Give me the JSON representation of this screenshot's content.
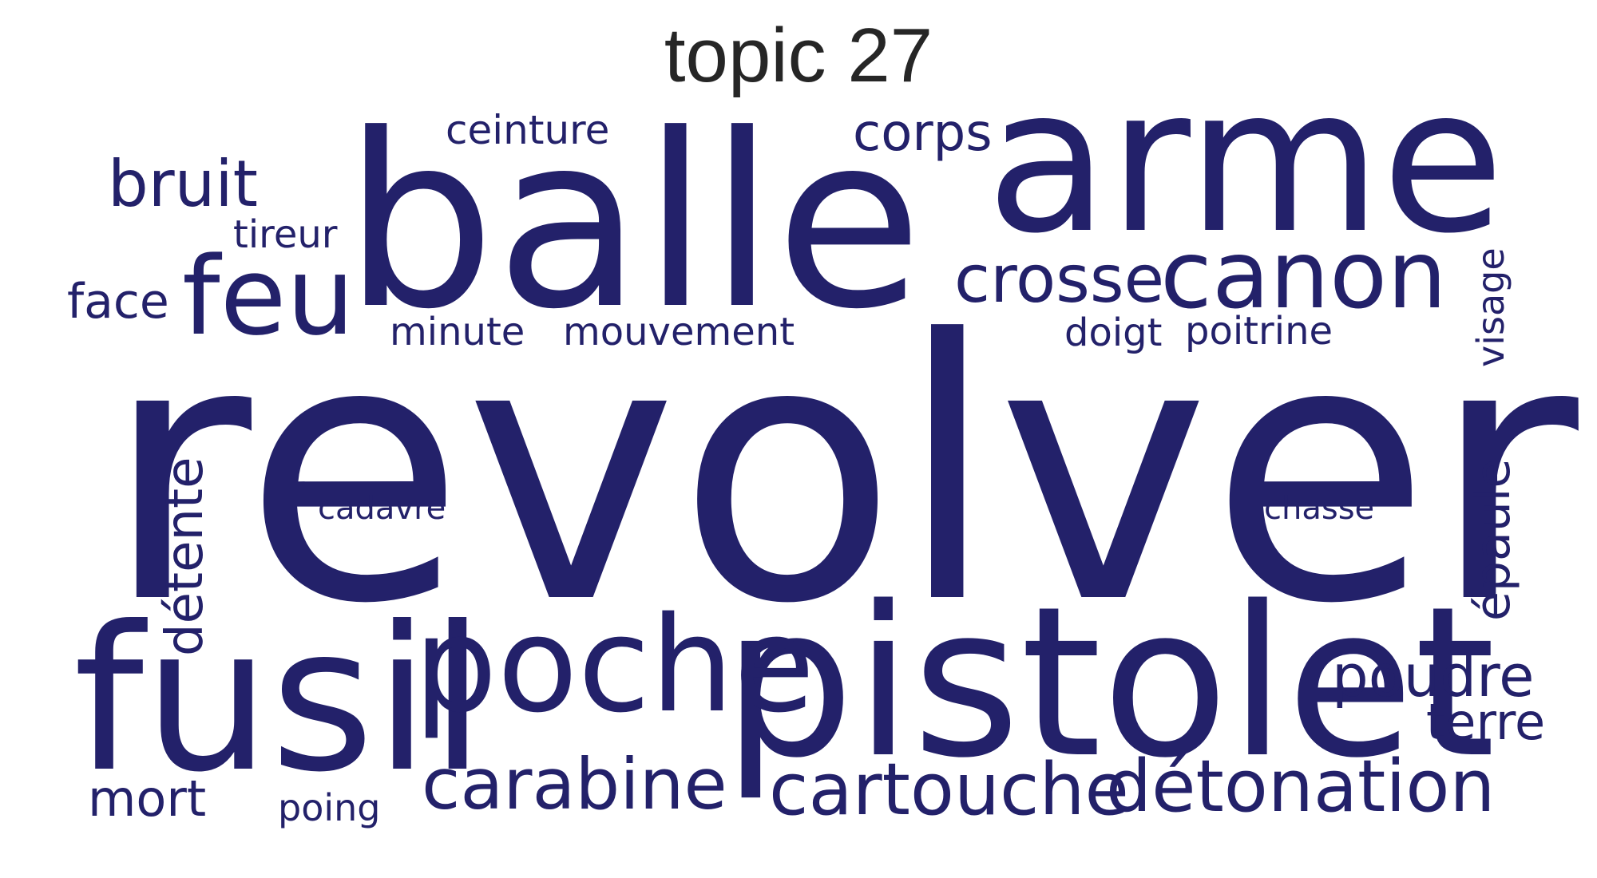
{
  "title": "topic 27",
  "cloud": {
    "color": "#23216a",
    "words": [
      {
        "text": "revolver",
        "weight": 1.0
      },
      {
        "text": "pistolet",
        "weight": 0.55
      },
      {
        "text": "balle",
        "weight": 0.6
      },
      {
        "text": "arme",
        "weight": 0.52
      },
      {
        "text": "fusil",
        "weight": 0.5
      },
      {
        "text": "poche",
        "weight": 0.36
      },
      {
        "text": "canon",
        "weight": 0.3
      },
      {
        "text": "feu",
        "weight": 0.28
      },
      {
        "text": "cartouche",
        "weight": 0.24
      },
      {
        "text": "détonation",
        "weight": 0.24
      },
      {
        "text": "carabine",
        "weight": 0.24
      },
      {
        "text": "crosse",
        "weight": 0.22
      },
      {
        "text": "poudre",
        "weight": 0.2
      },
      {
        "text": "bruit",
        "weight": 0.2
      },
      {
        "text": "détente",
        "weight": 0.18
      },
      {
        "text": "corps",
        "weight": 0.16
      },
      {
        "text": "mort",
        "weight": 0.16
      },
      {
        "text": "terre",
        "weight": 0.16
      },
      {
        "text": "face",
        "weight": 0.16
      },
      {
        "text": "épaule",
        "weight": 0.16
      },
      {
        "text": "ceinture",
        "weight": 0.12
      },
      {
        "text": "mouvement",
        "weight": 0.12
      },
      {
        "text": "minute",
        "weight": 0.12
      },
      {
        "text": "poitrine",
        "weight": 0.12
      },
      {
        "text": "doigt",
        "weight": 0.12
      },
      {
        "text": "tireur",
        "weight": 0.12
      },
      {
        "text": "visage",
        "weight": 0.11
      },
      {
        "text": "poing",
        "weight": 0.11
      },
      {
        "text": "cadavre",
        "weight": 0.1
      },
      {
        "text": "chasse",
        "weight": 0.1
      }
    ]
  }
}
